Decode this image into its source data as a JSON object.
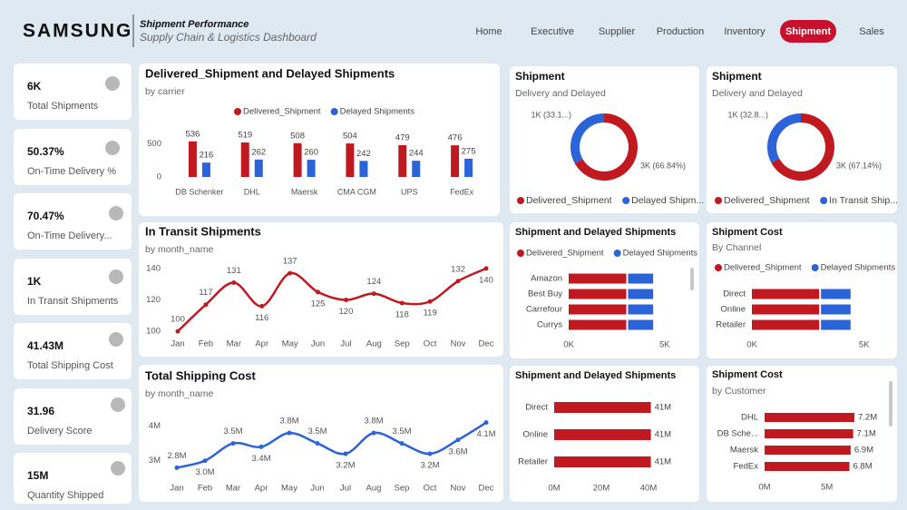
{
  "header": {
    "brand": "SAMSUNG",
    "title": "Shipment Performance",
    "subtitle": "Supply Chain & Logistics Dashboard"
  },
  "nav": {
    "items": [
      "Home",
      "Executive",
      "Supplier",
      "Production",
      "Inventory",
      "Shipment",
      "Sales"
    ],
    "active": 5
  },
  "kpis": [
    {
      "value": "6K",
      "label": "Total Shipments"
    },
    {
      "value": "50.37%",
      "label": "On-Time Delivery %"
    },
    {
      "value": "70.47%",
      "label": "On-Time Delivery..."
    },
    {
      "value": "1K",
      "label": "In Transit Shipments"
    },
    {
      "value": "41.43M",
      "label": "Total Shipping Cost"
    },
    {
      "value": "31.96",
      "label": "Delivery Score"
    },
    {
      "value": "15M",
      "label": "Quantity Shipped"
    }
  ],
  "chart_data": [
    {
      "type": "bar",
      "title": "Delivered_Shipment and Delayed Shipments",
      "subtitle": "by carrier",
      "categories": [
        "DB Schenker",
        "DHL",
        "Maersk",
        "CMA CGM",
        "UPS",
        "FedEx"
      ],
      "series": [
        {
          "name": "Delivered_Shipment",
          "color": "#c0191f",
          "values": [
            536,
            519,
            508,
            504,
            479,
            476
          ]
        },
        {
          "name": "Delayed Shipments",
          "color": "#2b63d9",
          "values": [
            216,
            262,
            260,
            242,
            244,
            275
          ]
        }
      ],
      "ylim": [
        0,
        560
      ],
      "yticks": [
        0,
        500
      ]
    },
    {
      "type": "line",
      "title": "In Transit Shipments",
      "subtitle": "by month_name",
      "categories": [
        "Jan",
        "Feb",
        "Mar",
        "Apr",
        "May",
        "Jun",
        "Jul",
        "Aug",
        "Sep",
        "Oct",
        "Nov",
        "Dec"
      ],
      "values": [
        100,
        117,
        131,
        116,
        137,
        125,
        120,
        124,
        118,
        119,
        132,
        140
      ],
      "color": "#c0191f",
      "ylim": [
        96,
        144
      ],
      "yticks": [
        100,
        120,
        140
      ]
    },
    {
      "type": "line",
      "title": "Total Shipping Cost",
      "subtitle": "by month_name",
      "categories": [
        "Jan",
        "Feb",
        "Mar",
        "Apr",
        "May",
        "Jun",
        "Jul",
        "Aug",
        "Sep",
        "Oct",
        "Nov",
        "Dec"
      ],
      "values": [
        2.8,
        3.0,
        3.5,
        3.4,
        3.8,
        3.5,
        3.2,
        3.8,
        3.5,
        3.2,
        3.6,
        4.1
      ],
      "value_labels": [
        "2.8M",
        "3.0M",
        "3.5M",
        "3.4M",
        "3.8M",
        "3.5M",
        "3.2M",
        "3.8M",
        "3.5M",
        "3.2M",
        "3.6M",
        "4.1M"
      ],
      "color": "#2b63d9",
      "ylim": [
        2.6,
        4.3
      ],
      "yticks": [
        {
          "value": 3,
          "label": "3M"
        },
        {
          "value": 4,
          "label": "4M"
        }
      ]
    },
    {
      "type": "donut",
      "title": "Shipment",
      "subtitle": "Delivery and Delayed",
      "categories": [
        "Delivered_Shipment",
        "Delayed Shipm..."
      ],
      "values": [
        66.84,
        33.16
      ],
      "value_labels": [
        "3K (66.84%)",
        "1K (33.1...)"
      ],
      "colors": [
        "#c0191f",
        "#2b63d9"
      ]
    },
    {
      "type": "donut",
      "title": "Shipment",
      "subtitle": "Delivery and Delayed",
      "categories": [
        "Delivered_Shipment",
        "In Transit Ship..."
      ],
      "values": [
        67.14,
        32.86
      ],
      "value_labels": [
        "3K (67.14%)",
        "1K (32.8...)"
      ],
      "colors": [
        "#c0191f",
        "#2b63d9"
      ]
    },
    {
      "type": "hbar",
      "title": "Shipment and Delayed Shipments",
      "categories": [
        "Amazon",
        "Best Buy",
        "Carrefour",
        "Currys"
      ],
      "series": [
        {
          "name": "Delivered_Shipment",
          "color": "#c0191f",
          "values": [
            3.0,
            3.0,
            3.0,
            3.0
          ]
        },
        {
          "name": "Delayed Shipments",
          "color": "#2b63d9",
          "values": [
            1.4,
            1.4,
            1.4,
            1.4
          ]
        }
      ],
      "xlim": [
        0,
        6
      ],
      "xticks": [
        {
          "value": 0,
          "label": "0K"
        },
        {
          "value": 5,
          "label": "5K"
        }
      ]
    },
    {
      "type": "hbar",
      "title": "Shipment Cost",
      "subtitle": "By Channel",
      "categories": [
        "Direct",
        "Online",
        "Retailer"
      ],
      "series": [
        {
          "name": "Delivered_Shipment",
          "color": "#c0191f",
          "values": [
            3.0,
            3.0,
            3.0
          ]
        },
        {
          "name": "Delayed Shipments",
          "color": "#2b63d9",
          "values": [
            1.4,
            1.4,
            1.4
          ]
        }
      ],
      "xlim": [
        0,
        5.5
      ],
      "xticks": [
        {
          "value": 0,
          "label": "0K"
        },
        {
          "value": 5,
          "label": "5K"
        }
      ]
    },
    {
      "type": "hbar",
      "title": "Shipment and Delayed Shipments",
      "categories": [
        "Direct",
        "Online",
        "Retailer"
      ],
      "values": [
        41,
        41,
        41
      ],
      "value_labels": [
        "41M",
        "41M",
        "41M"
      ],
      "color": "#c0191f",
      "xlim": [
        0,
        45
      ],
      "xticks": [
        {
          "value": 0,
          "label": "0M"
        },
        {
          "value": 20,
          "label": "20M"
        },
        {
          "value": 40,
          "label": "40M"
        }
      ]
    },
    {
      "type": "hbar",
      "title": "Shipment Cost",
      "subtitle": "by Customer",
      "categories": [
        "DHL",
        "DB Sche...",
        "Maersk",
        "FedEx"
      ],
      "values": [
        7.2,
        7.1,
        6.9,
        6.8
      ],
      "value_labels": [
        "7.2M",
        "7.1M",
        "6.9M",
        "6.8M"
      ],
      "color": "#c0191f",
      "xlim": [
        0,
        8
      ],
      "xticks": [
        {
          "value": 0,
          "label": "0M"
        },
        {
          "value": 5,
          "label": "5M"
        }
      ]
    }
  ]
}
